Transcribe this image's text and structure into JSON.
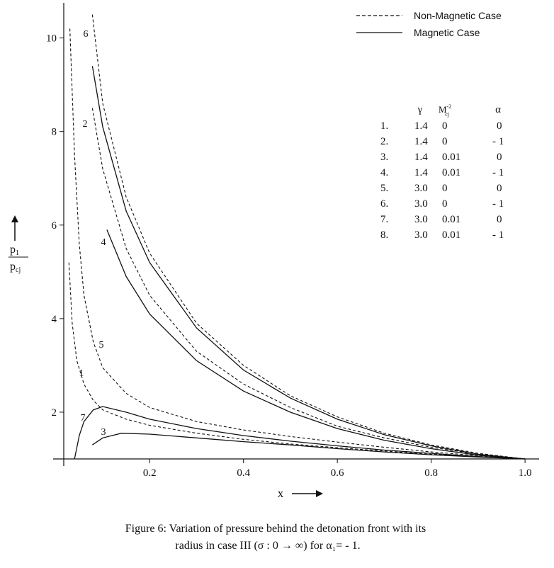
{
  "chart_data": {
    "type": "line",
    "x_label": "x",
    "y_label": {
      "numerator": "p",
      "num_sub": "1",
      "denominator": "p",
      "den_sub": "cj"
    },
    "xlim": [
      0.017,
      1.03
    ],
    "ylim": [
      1,
      10.6
    ],
    "xticks": [
      0.2,
      0.4,
      0.6,
      0.8,
      {
        "value": 1,
        "label": "1.0"
      }
    ],
    "yticks": [
      2,
      4,
      6,
      8,
      10
    ],
    "color": "#111111",
    "legend_position": "upper right",
    "legend": [
      {
        "label": "Non-Magnetic Case",
        "dashed": true
      },
      {
        "label": "Magnetic Case",
        "dashed": false
      }
    ],
    "table": {
      "header": [
        "γ",
        {
          "base": "M",
          "sub": "cj",
          "sup": "-2"
        },
        "α"
      ],
      "rows": [
        [
          "1.",
          "1.4",
          "0",
          "0"
        ],
        [
          "2.",
          "1.4",
          "0",
          "- 1"
        ],
        [
          "3.",
          "1.4",
          "0.01",
          "0"
        ],
        [
          "4.",
          "1.4",
          "0.01",
          "- 1"
        ],
        [
          "5.",
          "3.0",
          "0",
          "0"
        ],
        [
          "6.",
          "3.0",
          "0",
          "- 1"
        ],
        [
          "7.",
          "3.0",
          "0.01",
          "0"
        ],
        [
          "8.",
          "3.0",
          "0.01",
          "- 1"
        ]
      ]
    },
    "series": [
      {
        "label": "1",
        "dashed": true,
        "x": [
          0.028,
          0.035,
          0.045,
          0.06,
          0.08,
          0.1,
          0.15,
          0.2,
          0.3,
          0.4,
          0.5,
          0.6,
          0.7,
          0.8,
          0.9,
          1.0
        ],
        "values": [
          5.2,
          3.9,
          3.1,
          2.6,
          2.25,
          2.05,
          1.85,
          1.72,
          1.55,
          1.42,
          1.32,
          1.24,
          1.17,
          1.1,
          1.05,
          1.0
        ]
      },
      {
        "label": "2",
        "dashed": true,
        "x": [
          0.078,
          0.1,
          0.15,
          0.2,
          0.3,
          0.4,
          0.5,
          0.6,
          0.7,
          0.8,
          0.9,
          1.0
        ],
        "values": [
          8.5,
          7.2,
          5.5,
          4.5,
          3.3,
          2.6,
          2.1,
          1.7,
          1.45,
          1.25,
          1.1,
          1.0
        ]
      },
      {
        "label": "3",
        "dashed": false,
        "x": [
          0.078,
          0.1,
          0.14,
          0.2,
          0.3,
          0.4,
          0.5,
          0.6,
          0.7,
          0.8,
          0.9,
          1.0
        ],
        "values": [
          1.3,
          1.45,
          1.55,
          1.53,
          1.45,
          1.37,
          1.3,
          1.22,
          1.15,
          1.09,
          1.04,
          1.0
        ]
      },
      {
        "label": "4",
        "dashed": false,
        "x": [
          0.109,
          0.15,
          0.2,
          0.3,
          0.4,
          0.5,
          0.6,
          0.7,
          0.8,
          0.9,
          1.0
        ],
        "values": [
          5.9,
          4.9,
          4.1,
          3.1,
          2.45,
          2.0,
          1.65,
          1.4,
          1.22,
          1.08,
          1.0
        ]
      },
      {
        "label": "5",
        "dashed": true,
        "x": [
          0.03,
          0.04,
          0.05,
          0.06,
          0.08,
          0.1,
          0.15,
          0.2,
          0.3,
          0.4,
          0.5,
          0.6,
          0.7,
          0.8,
          0.9,
          1.0
        ],
        "values": [
          10.2,
          7.5,
          5.6,
          4.5,
          3.5,
          2.95,
          2.4,
          2.1,
          1.8,
          1.62,
          1.48,
          1.36,
          1.25,
          1.15,
          1.07,
          1.0
        ]
      },
      {
        "label": "6",
        "dashed": true,
        "x": [
          0.078,
          0.1,
          0.15,
          0.2,
          0.3,
          0.4,
          0.5,
          0.6,
          0.7,
          0.8,
          0.9,
          1.0
        ],
        "values": [
          10.5,
          8.6,
          6.6,
          5.4,
          3.9,
          3.0,
          2.35,
          1.9,
          1.55,
          1.3,
          1.12,
          1.0
        ]
      },
      {
        "label": "7",
        "dashed": false,
        "x": [
          0.04,
          0.05,
          0.06,
          0.08,
          0.1,
          0.15,
          0.2,
          0.3,
          0.4,
          0.5,
          0.6,
          0.7,
          0.8,
          0.9,
          1.0
        ],
        "values": [
          1.0,
          1.5,
          1.8,
          2.05,
          2.12,
          2.0,
          1.85,
          1.65,
          1.5,
          1.38,
          1.28,
          1.19,
          1.12,
          1.05,
          1.0
        ]
      },
      {
        "dashed": false,
        "x": [
          0.078,
          0.1,
          0.15,
          0.2,
          0.3,
          0.4,
          0.5,
          0.6,
          0.7,
          0.8,
          0.9,
          1.0
        ],
        "values": [
          9.4,
          8.1,
          6.3,
          5.2,
          3.8,
          2.9,
          2.3,
          1.85,
          1.52,
          1.28,
          1.1,
          1.0
        ]
      }
    ]
  },
  "caption": [
    "Figure 6: Variation of pressure behind the detonation front with its",
    "radius in case III (σ : 0 → ∞) for α₁= - 1."
  ]
}
